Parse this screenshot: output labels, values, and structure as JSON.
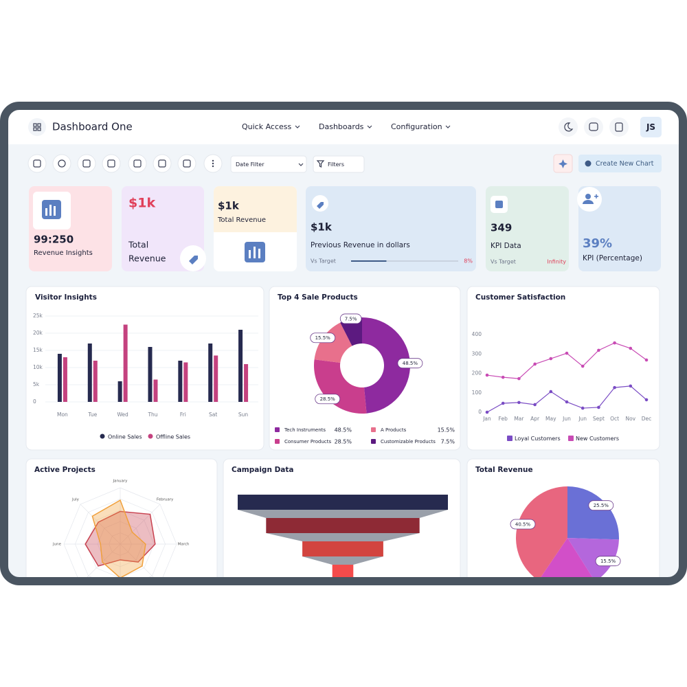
{
  "header": {
    "title": "Dashboard One",
    "nav": [
      "Quick Access",
      "Dashboards",
      "Configuration"
    ],
    "avatar": "JS"
  },
  "toolbar": {
    "date_filter": "Date Filter",
    "filters": "Filters",
    "create_button": "Create New Chart"
  },
  "kpis": [
    {
      "value": "99:250",
      "label": "Revenue Insights"
    },
    {
      "value": "$1k",
      "label_lines": [
        "Total",
        "Revenue"
      ]
    },
    {
      "value": "$1k",
      "label": "Total Revenue"
    },
    {
      "value": "$1k",
      "label": "Previous Revenue in dollars",
      "target_text": "Vs Target",
      "progress": 33,
      "target_value": "8%"
    },
    {
      "value": "349",
      "label": "KPI Data",
      "target_text": "Vs Target",
      "target_value": "Infinity"
    },
    {
      "value": "39%",
      "label": "KPI (Percentage)"
    }
  ],
  "chart_data": [
    {
      "type": "bar",
      "title": "Visitor Insights",
      "categories": [
        "Mon",
        "Tue",
        "Wed",
        "Thu",
        "Fri",
        "Sat",
        "Sun"
      ],
      "series": [
        {
          "name": "Online Sales",
          "color": "#262a4f",
          "values": [
            14000,
            17000,
            6000,
            16000,
            12000,
            17000,
            21000
          ]
        },
        {
          "name": "Offline Sales",
          "color": "#c4427f",
          "values": [
            13000,
            12000,
            22500,
            6500,
            11500,
            13500,
            11000
          ]
        }
      ],
      "ylim": [
        0,
        25000
      ],
      "yticks": [
        0,
        {
          "value": 5000,
          "label": "5k"
        },
        {
          "value": 10000,
          "label": "10k"
        },
        {
          "value": 15000,
          "label": "15k"
        },
        {
          "value": 20000,
          "label": "20k"
        },
        {
          "value": 25000,
          "label": "25k"
        }
      ],
      "grid": true,
      "legend": "bottom"
    },
    {
      "type": "donut",
      "title": "Top 4 Sale Products",
      "categories": [
        "Tech Instruments",
        "Consumer Products",
        "A Products",
        "Customizable Products"
      ],
      "values": [
        48.5,
        28.5,
        15.5,
        7.5
      ],
      "value_labels": [
        "48.5%",
        "28.5%",
        "15.5%",
        "7.5%"
      ],
      "colors": [
        "#8e2a9f",
        "#c93e8d",
        "#e8708c",
        "#5c1a80"
      ]
    },
    {
      "type": "line",
      "title": "Customer Satisfaction",
      "categories": [
        "Jan",
        "Feb",
        "Mar",
        "Apr",
        "May",
        "Jun",
        "Jun",
        "Sept",
        "Oct",
        "Nov",
        "Dec"
      ],
      "series": [
        {
          "name": "Loyal Customers",
          "color": "#7a4cc4",
          "values": [
            0,
            46,
            50,
            39,
            106,
            53,
            21,
            25,
            127,
            135,
            64
          ]
        },
        {
          "name": "New Customers",
          "color": "#c84bb4",
          "values": [
            191,
            180,
            173,
            248,
            276,
            304,
            237,
            319,
            357,
            329,
            269
          ]
        }
      ],
      "ylim": [
        0,
        400
      ],
      "yticks": [
        0,
        100,
        200,
        300,
        400
      ],
      "grid": false,
      "legend": "bottom"
    },
    {
      "type": "radar",
      "title": "Active Projects",
      "categories": [
        "January",
        "February",
        "March",
        null,
        null,
        null,
        "June",
        "July"
      ],
      "series": [
        {
          "color": "#c8414f",
          "values": [
            58,
            75,
            62,
            45,
            28,
            55,
            62,
            55
          ]
        },
        {
          "color": "#f0a03c",
          "values": [
            78,
            30,
            45,
            55,
            60,
            45,
            35,
            70
          ]
        }
      ],
      "rlim": [
        0,
        100
      ]
    },
    {
      "type": "funnel",
      "title": "Campaign Data",
      "values": [
        100,
        73,
        38.5,
        10
      ],
      "colors": [
        "#262a4f",
        "#8e2a35",
        "#d2443f",
        "#f44b4b"
      ]
    },
    {
      "type": "pie",
      "title": "Total Revenue",
      "values": [
        25.5,
        15.5,
        18.5,
        40.5
      ],
      "value_labels": [
        "25.5%",
        "15.5%",
        null,
        "40.5%"
      ],
      "colors": [
        "#6a70d6",
        "#b467dc",
        "#d24fc8",
        "#e8667f"
      ]
    }
  ]
}
